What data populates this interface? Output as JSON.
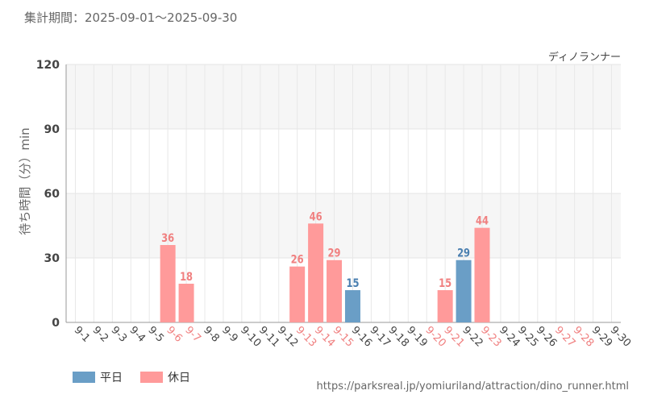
{
  "header": {
    "period_label": "集計期間：2025-09-01～2025-09-30",
    "attraction_name": "ディノランナー"
  },
  "legend": [
    {
      "label": "平日",
      "color": "#6a9ec6"
    },
    {
      "label": "休日",
      "color": "#ff9a9a"
    }
  ],
  "source_url": "https://parksreal.jp/yomiuriland/attraction/dino_runner.html",
  "chart_data": {
    "type": "bar",
    "ylabel": "待ち時間（分）min",
    "ylim": [
      0,
      120
    ],
    "yticks": [
      0,
      30,
      60,
      90,
      120
    ],
    "categories": [
      "9-1",
      "9-2",
      "9-3",
      "9-4",
      "9-5",
      "9-6",
      "9-7",
      "9-8",
      "9-9",
      "9-10",
      "9-11",
      "9-12",
      "9-13",
      "9-14",
      "9-15",
      "9-16",
      "9-17",
      "9-18",
      "9-19",
      "9-20",
      "9-21",
      "9-22",
      "9-23",
      "9-24",
      "9-25",
      "9-26",
      "9-27",
      "9-28",
      "9-29",
      "9-30"
    ],
    "holiday": [
      false,
      false,
      false,
      false,
      false,
      true,
      true,
      false,
      false,
      false,
      false,
      false,
      true,
      true,
      true,
      false,
      false,
      false,
      false,
      true,
      true,
      false,
      true,
      false,
      false,
      false,
      true,
      true,
      false,
      false
    ],
    "values": [
      null,
      null,
      null,
      null,
      null,
      36,
      18,
      null,
      null,
      null,
      null,
      null,
      26,
      46,
      29,
      15,
      null,
      null,
      null,
      null,
      15,
      29,
      44,
      null,
      null,
      null,
      null,
      null,
      null,
      null
    ],
    "colors": {
      "weekday": "#6a9ec6",
      "holiday": "#ff9a9a",
      "weekday_text": "#4a7fb0",
      "holiday_text": "#f08080",
      "band": "#f6f6f6"
    },
    "grid": true,
    "legend_position": "bottom-left"
  }
}
